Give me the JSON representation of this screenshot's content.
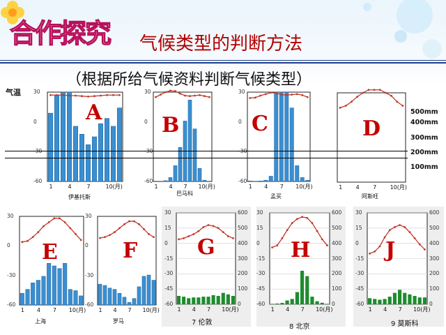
{
  "header": {
    "banner": "合作探究",
    "title": "气候类型的判断方法",
    "subtitle": "（根据所给气候资料判断气候类型）",
    "y_axis_label": "气温"
  },
  "reference_labels": [
    "500mm",
    "400mm",
    "300mm",
    "200mm",
    "100mm"
  ],
  "colors": {
    "accent": "#c40000",
    "temp_line": "#c0392b",
    "bar_blue": "#3a8fd1",
    "bar_green": "#1e8c2e"
  },
  "chart_data": [
    {
      "letter": "A",
      "type": "bar+line",
      "city": "伊基托斯",
      "x_ticks": [
        "1",
        "4",
        "7",
        "10(月)"
      ],
      "y_ticks": [
        "30",
        "0",
        "-30",
        "-60"
      ],
      "months": [
        1,
        2,
        3,
        4,
        5,
        6,
        7,
        8,
        9,
        10,
        11,
        12
      ],
      "temperature": [
        27,
        27,
        27,
        26.5,
        26.5,
        26,
        25.5,
        26,
        26.5,
        27,
        27,
        27
      ],
      "precipitation": [
        260,
        330,
        400,
        380,
        210,
        180,
        140,
        170,
        220,
        240,
        210,
        280
      ]
    },
    {
      "letter": "B",
      "type": "bar+line",
      "city": "巴马科",
      "x_ticks": [
        "1",
        "4",
        "7",
        "10(月)"
      ],
      "y_ticks": [
        "30",
        "0",
        "-30",
        "-60"
      ],
      "months": [
        1,
        2,
        3,
        4,
        5,
        6,
        7,
        8,
        9,
        10,
        11,
        12
      ],
      "temperature": [
        25,
        27.5,
        30,
        31.5,
        31,
        28.5,
        26.5,
        26,
        26.5,
        27,
        26,
        25
      ],
      "precipitation": [
        0,
        0,
        3,
        15,
        60,
        130,
        230,
        310,
        200,
        50,
        5,
        0
      ]
    },
    {
      "letter": "C",
      "type": "bar+line",
      "city": "孟买",
      "x_ticks": [
        "1",
        "4",
        "7",
        "10(月)"
      ],
      "y_ticks": [
        "30",
        "0",
        "-30",
        "-60"
      ],
      "months": [
        1,
        2,
        3,
        4,
        5,
        6,
        7,
        8,
        9,
        10,
        11,
        12
      ],
      "temperature": [
        24,
        24.5,
        26.5,
        28,
        29.5,
        29,
        27.5,
        27,
        27.5,
        28,
        27,
        25
      ],
      "precipitation": [
        2,
        1,
        2,
        5,
        20,
        500,
        620,
        380,
        280,
        60,
        15,
        5
      ]
    },
    {
      "letter": "D",
      "type": "bar+line",
      "city": "阿斯旺",
      "x_ticks": [
        "1",
        "4",
        "7",
        "10(月)"
      ],
      "y_ticks": [],
      "months": [
        1,
        2,
        3,
        4,
        5,
        6,
        7,
        8,
        9,
        10,
        11,
        12
      ],
      "temperature": [
        15,
        17,
        21,
        26,
        30,
        33,
        33,
        33,
        30,
        27,
        21,
        17
      ],
      "precipitation": [
        0,
        0,
        0,
        0,
        0,
        0,
        0,
        0,
        0,
        0,
        0,
        0
      ]
    },
    {
      "letter": "E",
      "type": "bar+line",
      "city": "上海",
      "x_ticks": [
        "1",
        "4",
        "7",
        "10(月)"
      ],
      "y_ticks": [
        "30",
        "0",
        "-30",
        "-60"
      ],
      "months": [
        1,
        2,
        3,
        4,
        5,
        6,
        7,
        8,
        9,
        10,
        11,
        12
      ],
      "temperature": [
        4,
        5,
        9,
        14,
        20,
        24,
        28,
        28,
        24,
        18,
        12,
        6
      ],
      "precipitation": [
        45,
        60,
        85,
        95,
        110,
        160,
        150,
        140,
        160,
        60,
        55,
        35
      ]
    },
    {
      "letter": "F",
      "type": "bar+line",
      "city": "罗马",
      "x_ticks": [
        "1",
        "4",
        "7",
        "10(月)"
      ],
      "y_ticks": [
        "30",
        "0",
        "-30",
        "-60"
      ],
      "months": [
        1,
        2,
        3,
        4,
        5,
        6,
        7,
        8,
        9,
        10,
        11,
        12
      ],
      "temperature": [
        8,
        9,
        11,
        14,
        18,
        22,
        25,
        25,
        22,
        17,
        12,
        9
      ],
      "precipitation": [
        80,
        75,
        65,
        60,
        45,
        30,
        10,
        25,
        70,
        110,
        115,
        95
      ]
    },
    {
      "letter": "G",
      "type": "bar+line",
      "city": "7 伦敦",
      "x_ticks": [
        "1",
        "4",
        "7",
        "10(月)"
      ],
      "y_ticks": [
        "30",
        "15",
        "0",
        "-15",
        "-30",
        "-45",
        "-60"
      ],
      "y2_ticks": [
        "600",
        "500",
        "400",
        "300",
        "200",
        "100",
        "0"
      ],
      "months": [
        1,
        2,
        3,
        4,
        5,
        6,
        7,
        8,
        9,
        10,
        11,
        12
      ],
      "temperature": [
        4,
        5,
        7,
        9,
        12,
        16,
        18,
        17,
        15,
        11,
        7,
        5
      ],
      "precipitation": [
        55,
        50,
        40,
        45,
        45,
        50,
        50,
        60,
        55,
        75,
        65,
        55
      ]
    },
    {
      "letter": "H",
      "type": "bar+line",
      "city": "8 北京",
      "x_ticks": [
        "1",
        "4",
        "7",
        "10(月)"
      ],
      "y_ticks": [
        "30",
        "15",
        "0",
        "-15",
        "-30",
        "-45",
        "-60"
      ],
      "y2_ticks": [
        "600",
        "500",
        "400",
        "300",
        "200",
        "100",
        "0"
      ],
      "months": [
        1,
        2,
        3,
        4,
        5,
        6,
        7,
        8,
        9,
        10,
        11,
        12
      ],
      "temperature": [
        -4,
        -2,
        5,
        13,
        20,
        24,
        26,
        25,
        20,
        12,
        4,
        -2
      ],
      "precipitation": [
        3,
        5,
        9,
        25,
        35,
        80,
        220,
        185,
        50,
        20,
        10,
        3
      ]
    },
    {
      "letter": "J",
      "type": "bar+line",
      "city": "9 莫斯科",
      "x_ticks": [
        "1",
        "4",
        "7",
        "10(月)"
      ],
      "y_ticks": [
        "30",
        "15",
        "0",
        "-15",
        "-30",
        "-45",
        "-60"
      ],
      "y2_ticks": [
        "600",
        "500",
        "400",
        "300",
        "200",
        "100",
        "0"
      ],
      "months": [
        1,
        2,
        3,
        4,
        5,
        6,
        7,
        8,
        9,
        10,
        11,
        12
      ],
      "temperature": [
        -10,
        -8,
        -3,
        6,
        13,
        16,
        18,
        16,
        11,
        5,
        -1,
        -6
      ],
      "precipitation": [
        40,
        35,
        30,
        35,
        50,
        75,
        95,
        75,
        65,
        55,
        45,
        45
      ]
    }
  ]
}
